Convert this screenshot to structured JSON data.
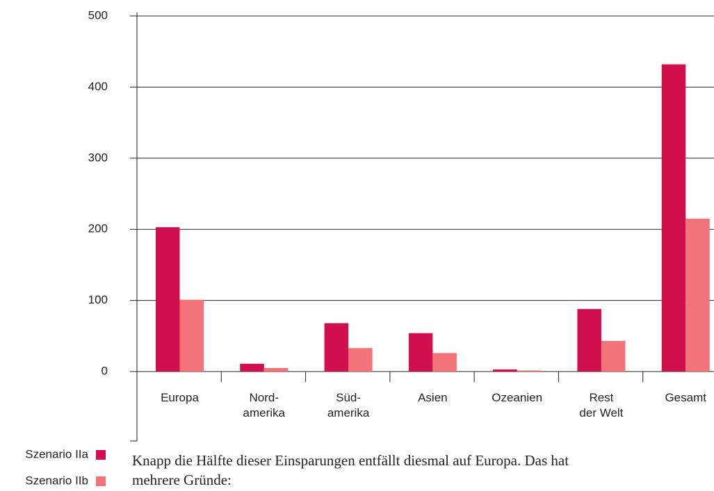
{
  "chart_data": {
    "type": "bar",
    "categories": [
      "Europa",
      "Nord-\namerika",
      "Süd-\namerika",
      "Asien",
      "Ozeanien",
      "Rest\nder Welt",
      "Gesamt"
    ],
    "series": [
      {
        "name": "Szenario IIa",
        "color": "#d0104c",
        "values": [
          203,
          11,
          68,
          54,
          3,
          88,
          432
        ]
      },
      {
        "name": "Szenario IIb",
        "color": "#f27479",
        "values": [
          101,
          5,
          33,
          26,
          1.5,
          43,
          215
        ]
      }
    ],
    "ylim": [
      0,
      500
    ],
    "yticks": [
      0,
      100,
      200,
      300,
      400,
      500
    ],
    "grid": true
  },
  "text": [
    "Knapp die Hälfte dieser Einsparungen entfällt diesmal auf Europa. Das hat",
    "mehrere Gründe:"
  ]
}
